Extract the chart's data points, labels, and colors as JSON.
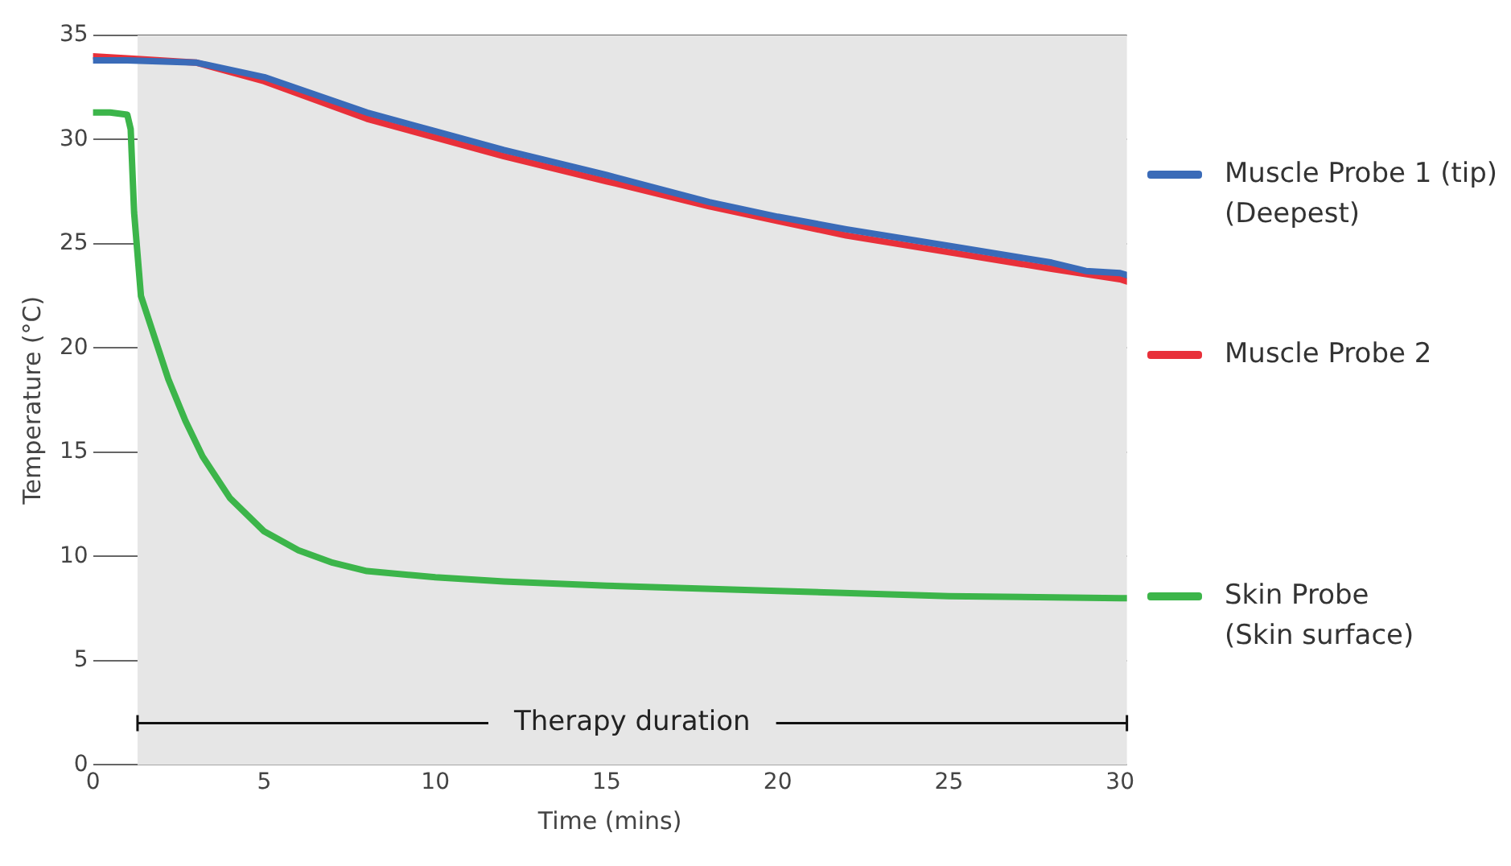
{
  "chart_data": {
    "type": "line",
    "xlabel": "Time (mins)",
    "ylabel": "Temperature (°C)",
    "xlim": [
      0,
      30.2
    ],
    "xticks": [
      0,
      5,
      10,
      15,
      20,
      25,
      30
    ],
    "ylim": [
      0,
      35
    ],
    "yticks": [
      0,
      5,
      10,
      15,
      20,
      25,
      30,
      35
    ],
    "grid": "y",
    "legend": "right",
    "marker": "none",
    "line_style": "solid",
    "bands": [
      {
        "axis": "x",
        "from": 1.3,
        "to": 30.2,
        "label": "Therapy duration",
        "color": "#e6e6e6"
      }
    ],
    "series": [
      {
        "name": "Muscle Probe 1 (tip)\n(Deepest)",
        "color": "#3a6bb8",
        "x": [
          0,
          1,
          3,
          5,
          8,
          10,
          12,
          15,
          18,
          20,
          22,
          25,
          28,
          29,
          30,
          30.2
        ],
        "values": [
          33.8,
          33.8,
          33.7,
          33.0,
          31.3,
          30.4,
          29.5,
          28.3,
          27.0,
          26.3,
          25.7,
          24.9,
          24.1,
          23.7,
          23.6,
          23.5
        ]
      },
      {
        "name": "Muscle Probe 2",
        "color": "#e8303a",
        "x": [
          0,
          1,
          3,
          5,
          8,
          10,
          12,
          15,
          18,
          20,
          22,
          25,
          28,
          30,
          30.2
        ],
        "values": [
          34.0,
          33.9,
          33.7,
          32.8,
          31.0,
          30.1,
          29.2,
          28.0,
          26.8,
          26.1,
          25.4,
          24.6,
          23.8,
          23.3,
          23.2
        ]
      },
      {
        "name": "Skin Probe\n(Skin surface)",
        "color": "#3cb54a",
        "x": [
          0,
          0.5,
          1,
          1.1,
          1.2,
          1.4,
          1.8,
          2.2,
          2.7,
          3.2,
          4,
          5,
          6,
          7,
          8,
          10,
          12,
          15,
          20,
          25,
          30,
          30.2
        ],
        "values": [
          31.3,
          31.3,
          31.2,
          30.5,
          26.5,
          22.5,
          20.5,
          18.5,
          16.5,
          14.8,
          12.8,
          11.2,
          10.3,
          9.7,
          9.3,
          9.0,
          8.8,
          8.6,
          8.35,
          8.1,
          8.0,
          8.0
        ]
      }
    ]
  }
}
